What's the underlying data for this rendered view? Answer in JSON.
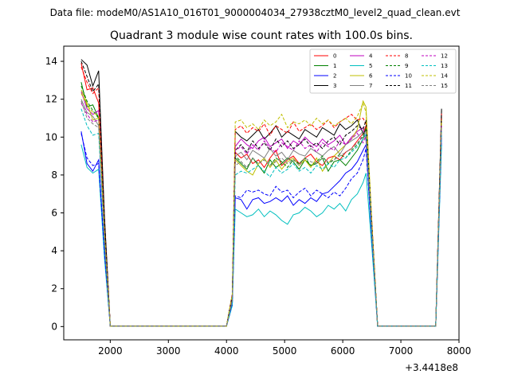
{
  "chart_data": {
    "type": "line",
    "suptitle": "Data file: modeM0/AS1A10_016T01_9000004034_27938cztM0_level2_quad_clean.evt",
    "title": "Quadrant 3 module wise count rates with 100.0s bins.",
    "xlabel": "",
    "ylabel": "",
    "offset_label": "+3.4418e8",
    "xlim": [
      1200,
      8000
    ],
    "ylim": [
      -0.7,
      14.8
    ],
    "xticks": [
      2000,
      3000,
      4000,
      5000,
      6000,
      7000,
      8000
    ],
    "yticks": [
      0,
      2,
      4,
      6,
      8,
      10,
      12,
      14
    ],
    "grid": false,
    "legend_position": "top-right",
    "x": [
      1500,
      1600,
      1700,
      1800,
      1900,
      2000,
      2100,
      2200,
      2300,
      2400,
      2500,
      2600,
      2700,
      2800,
      2900,
      3000,
      3100,
      3200,
      3300,
      3400,
      3500,
      3600,
      3700,
      3800,
      3900,
      4000,
      4100,
      4150,
      4250,
      4350,
      4450,
      4550,
      4650,
      4750,
      4850,
      4950,
      5050,
      5150,
      5250,
      5350,
      5450,
      5550,
      5650,
      5750,
      5850,
      5950,
      6050,
      6150,
      6250,
      6350,
      6400,
      6500,
      6600,
      6700,
      6800,
      6900,
      7000,
      7100,
      7200,
      7300,
      7400,
      7500,
      7600,
      7700
    ],
    "series": [
      {
        "name": "0",
        "color": "#ff0000",
        "dash": false,
        "values": [
          13.9,
          12.5,
          12.6,
          11.8,
          5.5,
          0.02,
          0.02,
          0.02,
          0.02,
          0.02,
          0.02,
          0.02,
          0.02,
          0.02,
          0.02,
          0.02,
          0.02,
          0.02,
          0.02,
          0.02,
          0.02,
          0.02,
          0.02,
          0.02,
          0.02,
          0.02,
          1.6,
          9.2,
          8.9,
          9.1,
          8.6,
          8.8,
          8.4,
          8.9,
          9.3,
          8.5,
          8.8,
          9.0,
          8.6,
          8.9,
          9.1,
          8.7,
          8.5,
          8.9,
          9.0,
          8.8,
          9.2,
          9.4,
          9.8,
          10.2,
          10.6,
          5.2,
          0.02,
          0.02,
          0.02,
          0.02,
          0.02,
          0.02,
          0.02,
          0.02,
          0.02,
          0.02,
          0.02,
          11.2
        ]
      },
      {
        "name": "1",
        "color": "#008000",
        "dash": false,
        "values": [
          12.9,
          11.6,
          11.7,
          11.0,
          5.0,
          0.02,
          0.02,
          0.02,
          0.02,
          0.02,
          0.02,
          0.02,
          0.02,
          0.02,
          0.02,
          0.02,
          0.02,
          0.02,
          0.02,
          0.02,
          0.02,
          0.02,
          0.02,
          0.02,
          0.02,
          0.02,
          1.5,
          8.9,
          8.6,
          8.3,
          8.9,
          8.5,
          8.1,
          8.8,
          8.4,
          8.6,
          8.9,
          8.7,
          8.3,
          8.8,
          8.5,
          8.6,
          8.9,
          8.2,
          8.7,
          8.8,
          8.5,
          8.9,
          9.3,
          9.9,
          10.5,
          5.0,
          0.02,
          0.02,
          0.02,
          0.02,
          0.02,
          0.02,
          0.02,
          0.02,
          0.02,
          0.02,
          0.02,
          11.0
        ]
      },
      {
        "name": "2",
        "color": "#0000ff",
        "dash": false,
        "values": [
          10.3,
          8.6,
          8.2,
          8.8,
          3.9,
          0.02,
          0.02,
          0.02,
          0.02,
          0.02,
          0.02,
          0.02,
          0.02,
          0.02,
          0.02,
          0.02,
          0.02,
          0.02,
          0.02,
          0.02,
          0.02,
          0.02,
          0.02,
          0.02,
          0.02,
          0.02,
          1.2,
          6.8,
          6.7,
          6.2,
          6.7,
          6.8,
          6.5,
          6.6,
          6.8,
          6.6,
          6.9,
          6.4,
          6.7,
          6.5,
          6.8,
          6.6,
          7.0,
          7.1,
          7.4,
          7.7,
          8.1,
          8.3,
          8.7,
          9.3,
          9.6,
          4.6,
          0.02,
          0.02,
          0.02,
          0.02,
          0.02,
          0.02,
          0.02,
          0.02,
          0.02,
          0.02,
          0.02,
          10.1
        ]
      },
      {
        "name": "3",
        "color": "#000000",
        "dash": false,
        "values": [
          14.1,
          13.8,
          12.7,
          13.5,
          5.8,
          0.02,
          0.02,
          0.02,
          0.02,
          0.02,
          0.02,
          0.02,
          0.02,
          0.02,
          0.02,
          0.02,
          0.02,
          0.02,
          0.02,
          0.02,
          0.02,
          0.02,
          0.02,
          0.02,
          0.02,
          0.02,
          1.7,
          10.3,
          10.0,
          9.8,
          10.1,
          10.4,
          9.9,
          10.2,
          10.6,
          10.0,
          10.3,
          10.1,
          9.9,
          10.4,
          10.2,
          10.0,
          10.5,
          10.3,
          10.1,
          10.7,
          10.4,
          10.6,
          10.9,
          10.2,
          10.4,
          5.4,
          0.02,
          0.02,
          0.02,
          0.02,
          0.02,
          0.02,
          0.02,
          0.02,
          0.02,
          0.02,
          0.02,
          11.5
        ]
      },
      {
        "name": "4",
        "color": "#bf00bf",
        "dash": false,
        "values": [
          12.4,
          11.5,
          11.2,
          11.4,
          5.1,
          0.02,
          0.02,
          0.02,
          0.02,
          0.02,
          0.02,
          0.02,
          0.02,
          0.02,
          0.02,
          0.02,
          0.02,
          0.02,
          0.02,
          0.02,
          0.02,
          0.02,
          0.02,
          0.02,
          0.02,
          0.02,
          1.5,
          9.5,
          9.9,
          9.6,
          9.4,
          9.8,
          10.0,
          9.5,
          9.7,
          9.9,
          9.4,
          9.8,
          9.6,
          10.0,
          9.7,
          9.5,
          9.9,
          9.6,
          9.8,
          10.1,
          9.6,
          10.0,
          10.3,
          10.5,
          9.8,
          5.0,
          0.02,
          0.02,
          0.02,
          0.02,
          0.02,
          0.02,
          0.02,
          0.02,
          0.02,
          0.02,
          0.02,
          10.9
        ]
      },
      {
        "name": "5",
        "color": "#00bfbf",
        "dash": false,
        "values": [
          9.6,
          8.4,
          8.1,
          8.3,
          3.6,
          0.02,
          0.02,
          0.02,
          0.02,
          0.02,
          0.02,
          0.02,
          0.02,
          0.02,
          0.02,
          0.02,
          0.02,
          0.02,
          0.02,
          0.02,
          0.02,
          0.02,
          0.02,
          0.02,
          0.02,
          0.02,
          1.1,
          6.2,
          6.0,
          5.8,
          5.9,
          6.2,
          5.8,
          6.1,
          5.9,
          5.6,
          5.4,
          5.9,
          6.0,
          6.3,
          6.1,
          5.8,
          6.0,
          6.4,
          6.2,
          6.5,
          6.1,
          6.7,
          7.0,
          7.6,
          8.1,
          4.2,
          0.02,
          0.02,
          0.02,
          0.02,
          0.02,
          0.02,
          0.02,
          0.02,
          0.02,
          0.02,
          0.02,
          9.6
        ]
      },
      {
        "name": "6",
        "color": "#bfbf00",
        "dash": false,
        "values": [
          12.5,
          11.8,
          10.9,
          11.0,
          4.9,
          0.02,
          0.02,
          0.02,
          0.02,
          0.02,
          0.02,
          0.02,
          0.02,
          0.02,
          0.02,
          0.02,
          0.02,
          0.02,
          0.02,
          0.02,
          0.02,
          0.02,
          0.02,
          0.02,
          0.02,
          0.02,
          1.4,
          8.8,
          8.5,
          8.2,
          8.0,
          8.6,
          8.9,
          8.4,
          8.8,
          8.3,
          8.7,
          8.9,
          8.5,
          8.8,
          8.4,
          8.9,
          8.2,
          8.6,
          9.0,
          9.3,
          9.6,
          9.9,
          10.4,
          11.9,
          11.6,
          5.5,
          0.02,
          0.02,
          0.02,
          0.02,
          0.02,
          0.02,
          0.02,
          0.02,
          0.02,
          0.02,
          0.02,
          10.8
        ]
      },
      {
        "name": "7",
        "color": "#808080",
        "dash": false,
        "values": [
          12.0,
          11.3,
          11.1,
          10.6,
          4.7,
          0.02,
          0.02,
          0.02,
          0.02,
          0.02,
          0.02,
          0.02,
          0.02,
          0.02,
          0.02,
          0.02,
          0.02,
          0.02,
          0.02,
          0.02,
          0.02,
          0.02,
          0.02,
          0.02,
          0.02,
          0.02,
          1.4,
          9.0,
          9.2,
          8.8,
          9.3,
          9.1,
          8.9,
          9.4,
          9.0,
          9.2,
          8.8,
          9.3,
          9.1,
          9.0,
          9.4,
          9.2,
          9.0,
          9.3,
          9.5,
          9.1,
          9.6,
          9.8,
          10.0,
          10.3,
          9.9,
          5.0,
          0.02,
          0.02,
          0.02,
          0.02,
          0.02,
          0.02,
          0.02,
          0.02,
          0.02,
          0.02,
          0.02,
          10.7
        ]
      },
      {
        "name": "8",
        "color": "#ff0000",
        "dash": true,
        "values": [
          13.7,
          12.9,
          12.3,
          12.6,
          5.6,
          0.02,
          0.02,
          0.02,
          0.02,
          0.02,
          0.02,
          0.02,
          0.02,
          0.02,
          0.02,
          0.02,
          0.02,
          0.02,
          0.02,
          0.02,
          0.02,
          0.02,
          0.02,
          0.02,
          0.02,
          0.02,
          1.7,
          10.4,
          10.6,
          10.2,
          10.5,
          10.3,
          10.7,
          10.1,
          10.6,
          10.4,
          10.2,
          10.8,
          10.3,
          10.5,
          10.7,
          10.4,
          10.6,
          10.9,
          10.5,
          10.8,
          11.0,
          11.2,
          10.9,
          11.0,
          10.7,
          5.6,
          0.02,
          0.02,
          0.02,
          0.02,
          0.02,
          0.02,
          0.02,
          0.02,
          0.02,
          0.02,
          0.02,
          11.3
        ]
      },
      {
        "name": "9",
        "color": "#008000",
        "dash": true,
        "values": [
          12.7,
          11.9,
          11.4,
          11.0,
          5.0,
          0.02,
          0.02,
          0.02,
          0.02,
          0.02,
          0.02,
          0.02,
          0.02,
          0.02,
          0.02,
          0.02,
          0.02,
          0.02,
          0.02,
          0.02,
          0.02,
          0.02,
          0.02,
          0.02,
          0.02,
          0.02,
          1.5,
          9.0,
          8.7,
          8.4,
          8.9,
          8.6,
          8.8,
          8.5,
          8.9,
          8.7,
          8.4,
          8.8,
          8.6,
          8.9,
          8.5,
          8.7,
          9.0,
          8.6,
          8.8,
          9.1,
          8.9,
          9.3,
          9.6,
          10.1,
          10.4,
          5.1,
          0.02,
          0.02,
          0.02,
          0.02,
          0.02,
          0.02,
          0.02,
          0.02,
          0.02,
          0.02,
          0.02,
          10.9
        ]
      },
      {
        "name": "10",
        "color": "#0000ff",
        "dash": true,
        "values": [
          10.2,
          8.9,
          8.5,
          8.6,
          3.9,
          0.02,
          0.02,
          0.02,
          0.02,
          0.02,
          0.02,
          0.02,
          0.02,
          0.02,
          0.02,
          0.02,
          0.02,
          0.02,
          0.02,
          0.02,
          0.02,
          0.02,
          0.02,
          0.02,
          0.02,
          0.02,
          1.2,
          6.9,
          6.8,
          7.2,
          7.1,
          7.2,
          7.0,
          6.9,
          7.4,
          7.1,
          7.2,
          6.8,
          7.1,
          7.3,
          6.9,
          7.2,
          7.0,
          6.8,
          7.1,
          6.9,
          7.3,
          7.8,
          8.1,
          8.8,
          9.4,
          4.6,
          0.02,
          0.02,
          0.02,
          0.02,
          0.02,
          0.02,
          0.02,
          0.02,
          0.02,
          0.02,
          0.02,
          10.0
        ]
      },
      {
        "name": "11",
        "color": "#000000",
        "dash": true,
        "values": [
          14.0,
          13.2,
          12.4,
          12.8,
          5.7,
          0.02,
          0.02,
          0.02,
          0.02,
          0.02,
          0.02,
          0.02,
          0.02,
          0.02,
          0.02,
          0.02,
          0.02,
          0.02,
          0.02,
          0.02,
          0.02,
          0.02,
          0.02,
          0.02,
          0.02,
          0.02,
          1.6,
          9.3,
          9.6,
          9.2,
          9.8,
          9.4,
          9.7,
          9.3,
          9.9,
          9.5,
          9.8,
          9.4,
          9.6,
          9.9,
          9.5,
          9.7,
          9.4,
          9.8,
          10.0,
          9.6,
          10.1,
          10.3,
          10.6,
          10.4,
          10.9,
          5.4,
          0.02,
          0.02,
          0.02,
          0.02,
          0.02,
          0.02,
          0.02,
          0.02,
          0.02,
          0.02,
          0.02,
          11.4
        ]
      },
      {
        "name": "12",
        "color": "#bf00bf",
        "dash": true,
        "values": [
          11.8,
          11.2,
          10.8,
          10.9,
          4.8,
          0.02,
          0.02,
          0.02,
          0.02,
          0.02,
          0.02,
          0.02,
          0.02,
          0.02,
          0.02,
          0.02,
          0.02,
          0.02,
          0.02,
          0.02,
          0.02,
          0.02,
          0.02,
          0.02,
          0.02,
          0.02,
          1.4,
          9.3,
          9.5,
          9.1,
          9.6,
          9.3,
          9.8,
          9.4,
          9.2,
          9.7,
          9.5,
          9.3,
          9.8,
          9.4,
          9.6,
          9.2,
          9.7,
          9.5,
          9.3,
          9.8,
          9.6,
          9.9,
          10.2,
          9.7,
          10.1,
          5.0,
          0.02,
          0.02,
          0.02,
          0.02,
          0.02,
          0.02,
          0.02,
          0.02,
          0.02,
          0.02,
          0.02,
          10.6
        ]
      },
      {
        "name": "13",
        "color": "#00bfbf",
        "dash": true,
        "values": [
          11.5,
          10.6,
          10.1,
          10.2,
          4.5,
          0.02,
          0.02,
          0.02,
          0.02,
          0.02,
          0.02,
          0.02,
          0.02,
          0.02,
          0.02,
          0.02,
          0.02,
          0.02,
          0.02,
          0.02,
          0.02,
          0.02,
          0.02,
          0.02,
          0.02,
          0.02,
          1.3,
          8.0,
          8.2,
          8.1,
          8.3,
          8.5,
          8.2,
          7.9,
          8.4,
          8.1,
          8.3,
          8.6,
          8.2,
          8.4,
          8.1,
          8.5,
          8.3,
          8.6,
          8.4,
          8.8,
          8.9,
          9.2,
          9.5,
          9.9,
          10.2,
          4.9,
          0.02,
          0.02,
          0.02,
          0.02,
          0.02,
          0.02,
          0.02,
          0.02,
          0.02,
          0.02,
          0.02,
          10.3
        ]
      },
      {
        "name": "14",
        "color": "#bfbf00",
        "dash": true,
        "values": [
          12.3,
          11.7,
          11.3,
          11.1,
          4.9,
          0.02,
          0.02,
          0.02,
          0.02,
          0.02,
          0.02,
          0.02,
          0.02,
          0.02,
          0.02,
          0.02,
          0.02,
          0.02,
          0.02,
          0.02,
          0.02,
          0.02,
          0.02,
          0.02,
          0.02,
          0.02,
          1.7,
          10.8,
          10.9,
          10.5,
          10.7,
          10.4,
          10.9,
          10.6,
          10.8,
          11.2,
          10.5,
          10.8,
          10.7,
          10.9,
          10.6,
          11.0,
          10.7,
          10.9,
          10.6,
          10.8,
          11.0,
          10.7,
          11.1,
          11.8,
          11.3,
          5.5,
          0.02,
          0.02,
          0.02,
          0.02,
          0.02,
          0.02,
          0.02,
          0.02,
          0.02,
          0.02,
          0.02,
          10.9
        ]
      },
      {
        "name": "15",
        "color": "#808080",
        "dash": true,
        "values": [
          11.9,
          11.0,
          10.7,
          10.5,
          4.6,
          0.02,
          0.02,
          0.02,
          0.02,
          0.02,
          0.02,
          0.02,
          0.02,
          0.02,
          0.02,
          0.02,
          0.02,
          0.02,
          0.02,
          0.02,
          0.02,
          0.02,
          0.02,
          0.02,
          0.02,
          0.02,
          1.4,
          8.5,
          8.7,
          8.4,
          8.9,
          8.6,
          8.8,
          8.5,
          8.7,
          8.9,
          8.6,
          8.8,
          8.5,
          8.9,
          8.7,
          8.6,
          8.9,
          8.7,
          8.8,
          9.0,
          9.2,
          9.4,
          9.7,
          10.0,
          10.3,
          5.0,
          0.02,
          0.02,
          0.02,
          0.02,
          0.02,
          0.02,
          0.02,
          0.02,
          0.02,
          0.02,
          0.02,
          10.5
        ]
      }
    ]
  }
}
